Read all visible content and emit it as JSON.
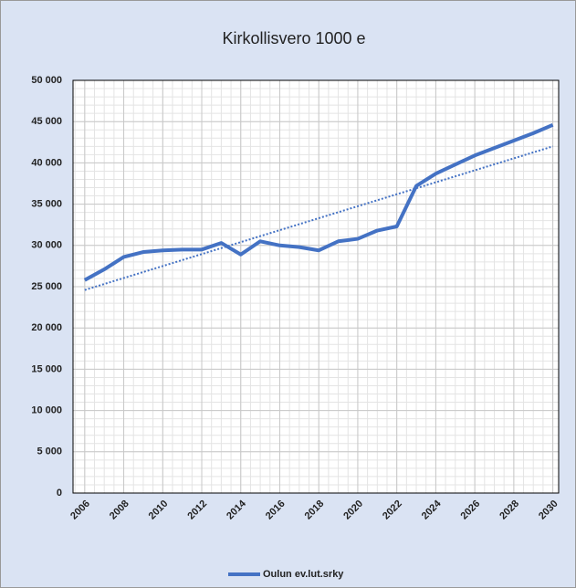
{
  "chart_data": {
    "type": "line",
    "title": "Kirkollisvero 1000 e",
    "x": [
      2006,
      2007,
      2008,
      2009,
      2010,
      2011,
      2012,
      2013,
      2014,
      2015,
      2016,
      2017,
      2018,
      2019,
      2020,
      2021,
      2022,
      2023,
      2024,
      2025,
      2026,
      2027,
      2028,
      2029,
      2030
    ],
    "series": [
      {
        "name": "Oulun ev.lut.srky",
        "color": "#4472c4",
        "values": [
          25800,
          27100,
          28600,
          29200,
          29400,
          29500,
          29500,
          30300,
          28900,
          30500,
          30000,
          29800,
          29400,
          30500,
          30800,
          31800,
          32300,
          37200,
          38700,
          39800,
          40900,
          41800,
          42700,
          43600,
          44600
        ]
      }
    ],
    "trendline": {
      "x": [
        2006,
        2030
      ],
      "values": [
        24600,
        42000
      ],
      "color": "#4472c4",
      "style": "dotted"
    },
    "xlim": [
      2005.4,
      2030.3
    ],
    "xticks": [
      2006,
      2008,
      2010,
      2012,
      2014,
      2016,
      2018,
      2020,
      2022,
      2024,
      2026,
      2028,
      2030
    ],
    "ylim": [
      0,
      50000
    ],
    "yticks": [
      0,
      {
        "value": 5000,
        "label": "5 000"
      },
      {
        "value": 10000,
        "label": "10 000"
      },
      {
        "value": 15000,
        "label": "15 000"
      },
      {
        "value": 20000,
        "label": "20 000"
      },
      {
        "value": 25000,
        "label": "25 000"
      },
      {
        "value": 30000,
        "label": "30 000"
      },
      {
        "value": 35000,
        "label": "35 000"
      },
      {
        "value": 40000,
        "label": "40 000"
      },
      {
        "value": 45000,
        "label": "45 000"
      },
      {
        "value": 50000,
        "label": "50 000"
      }
    ],
    "grid": true,
    "yminor": 1000,
    "xminor": 0.5,
    "legend": "bottom"
  }
}
